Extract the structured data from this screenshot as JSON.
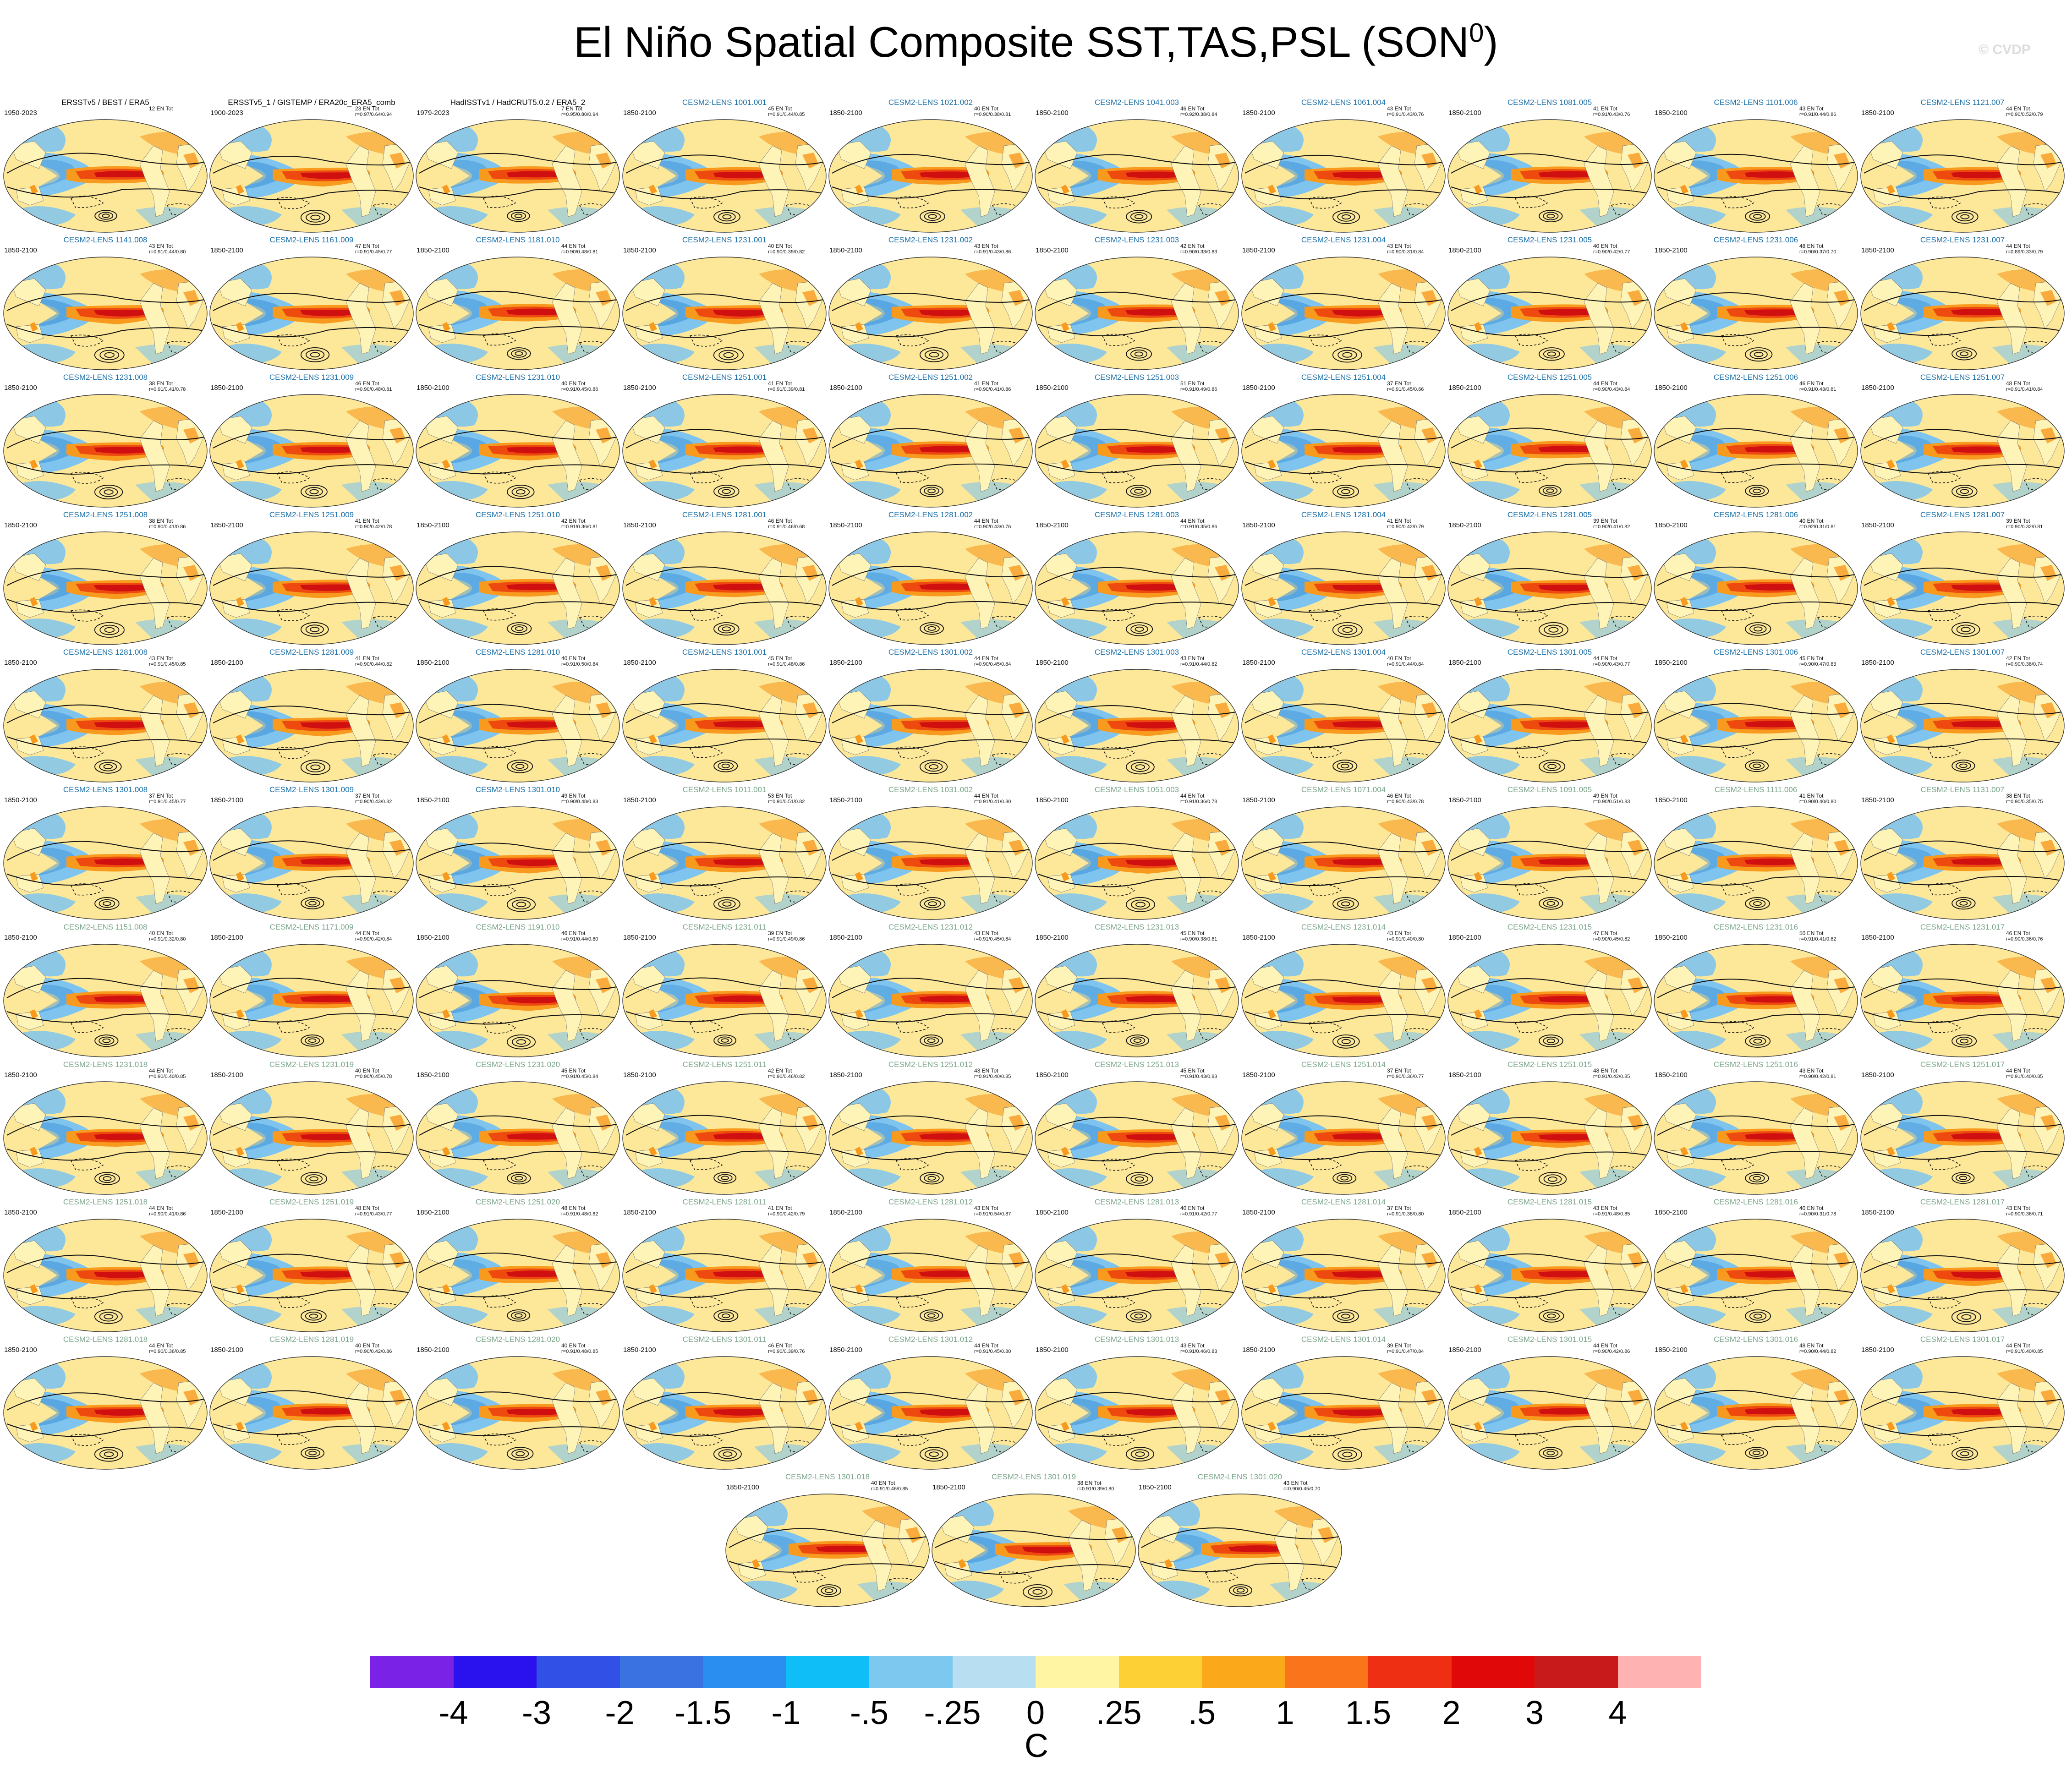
{
  "title": "El Niño Spatial Composite SST,TAS,PSL (SON",
  "title_superscript": "0",
  "title_close": ")",
  "watermark": "© CVDP",
  "colors": {
    "ocean_base": "#fde89a",
    "land_base": "#fff4b8",
    "ninotongue_outer": "#f79a1e",
    "ninotongue_mid": "#ee4a10",
    "ninotongue_core": "#d01010",
    "cold_boomerang": "#7fc4ee",
    "cold_boomerang_dark": "#3a8fd8",
    "contour": "#111111",
    "panel_title_obs": "#000000",
    "panel_title_cesm_first": "#1a6fa8",
    "panel_title_cesm_second": "#7ba58a"
  },
  "legend": {
    "colors": [
      "#7a22e6",
      "#2a12ee",
      "#3050e6",
      "#3b72e2",
      "#2a8ef0",
      "#0fbef6",
      "#7cc8ee",
      "#b7def1",
      "#fff5a2",
      "#fdd135",
      "#fba91b",
      "#f9741a",
      "#ee2f14",
      "#e00808",
      "#c81a1a",
      "#feb2b2"
    ],
    "ticks": [
      "-4",
      "-3",
      "-2",
      "-1.5",
      "-1",
      "-.5",
      "-.25",
      "0",
      ".25",
      ".5",
      "1",
      "1.5",
      "2",
      "3",
      "4"
    ],
    "unit": "C"
  },
  "panels": [
    {
      "name": "ERSSTv5 / BEST / ERA5",
      "period": "1950-2023",
      "count": "12 EN Tot",
      "stats": "",
      "title_color": "obs"
    },
    {
      "name": "ERSSTv5_1 / GISTEMP / ERA20c_ERA5_comb",
      "period": "1900-2023",
      "count": "23 EN Tot",
      "stats": "r=0.97/0.64/0.94",
      "title_color": "obs"
    },
    {
      "name": "HadISSTv1 / HadCRUT5.0.2 / ERA5_2",
      "period": "1979-2023",
      "count": "7 EN Tot",
      "stats": "r=0.95/0.80/0.94",
      "title_color": "obs"
    },
    {
      "name": "CESM2-LENS 1001.001",
      "period": "1850-2100",
      "count": "45 EN Tot",
      "stats": "r=0.91/0.44/0.85",
      "title_color": "c1"
    },
    {
      "name": "CESM2-LENS 1021.002",
      "period": "1850-2100",
      "count": "40 EN Tot",
      "stats": "r=0.90/0.38/0.81",
      "title_color": "c1"
    },
    {
      "name": "CESM2-LENS 1041.003",
      "period": "1850-2100",
      "count": "46 EN Tot",
      "stats": "r=0.92/0.38/0.84",
      "title_color": "c1"
    },
    {
      "name": "CESM2-LENS 1061.004",
      "period": "1850-2100",
      "count": "43 EN Tot",
      "stats": "r=0.91/0.43/0.76",
      "title_color": "c1"
    },
    {
      "name": "CESM2-LENS 1081.005",
      "period": "1850-2100",
      "count": "41 EN Tot",
      "stats": "r=0.91/0.43/0.76",
      "title_color": "c1"
    },
    {
      "name": "CESM2-LENS 1101.006",
      "period": "1850-2100",
      "count": "43 EN Tot",
      "stats": "r=0.91/0.44/0.86",
      "title_color": "c1"
    },
    {
      "name": "CESM2-LENS 1121.007",
      "period": "1850-2100",
      "count": "44 EN Tot",
      "stats": "r=0.90/0.52/0.79",
      "title_color": "c1"
    },
    {
      "name": "CESM2-LENS 1141.008",
      "period": "1850-2100",
      "count": "43 EN Tot",
      "stats": "r=0.91/0.44/0.80",
      "title_color": "c1"
    },
    {
      "name": "CESM2-LENS 1161.009",
      "period": "1850-2100",
      "count": "47 EN Tot",
      "stats": "r=0.91/0.45/0.77",
      "title_color": "c1"
    },
    {
      "name": "CESM2-LENS 1181.010",
      "period": "1850-2100",
      "count": "44 EN Tot",
      "stats": "r=0.90/0.48/0.81",
      "title_color": "c1"
    },
    {
      "name": "CESM2-LENS 1231.001",
      "period": "1850-2100",
      "count": "40 EN Tot",
      "stats": "r=0.90/0.39/0.82",
      "title_color": "c1"
    },
    {
      "name": "CESM2-LENS 1231.002",
      "period": "1850-2100",
      "count": "43 EN Tot",
      "stats": "r=0.91/0.43/0.86",
      "title_color": "c1"
    },
    {
      "name": "CESM2-LENS 1231.003",
      "period": "1850-2100",
      "count": "42 EN Tot",
      "stats": "r=0.90/0.33/0.83",
      "title_color": "c1"
    },
    {
      "name": "CESM2-LENS 1231.004",
      "period": "1850-2100",
      "count": "43 EN Tot",
      "stats": "r=0.90/0.31/0.84",
      "title_color": "c1"
    },
    {
      "name": "CESM2-LENS 1231.005",
      "period": "1850-2100",
      "count": "40 EN Tot",
      "stats": "r=0.90/0.42/0.77",
      "title_color": "c1"
    },
    {
      "name": "CESM2-LENS 1231.006",
      "period": "1850-2100",
      "count": "48 EN Tot",
      "stats": "r=0.90/0.37/0.70",
      "title_color": "c1"
    },
    {
      "name": "CESM2-LENS 1231.007",
      "period": "1850-2100",
      "count": "44 EN Tot",
      "stats": "r=0.89/0.33/0.79",
      "title_color": "c1"
    },
    {
      "name": "CESM2-LENS 1231.008",
      "period": "1850-2100",
      "count": "38 EN Tot",
      "stats": "r=0.91/0.41/0.78",
      "title_color": "c1"
    },
    {
      "name": "CESM2-LENS 1231.009",
      "period": "1850-2100",
      "count": "46 EN Tot",
      "stats": "r=0.90/0.48/0.81",
      "title_color": "c1"
    },
    {
      "name": "CESM2-LENS 1231.010",
      "period": "1850-2100",
      "count": "40 EN Tot",
      "stats": "r=0.91/0.45/0.86",
      "title_color": "c1"
    },
    {
      "name": "CESM2-LENS 1251.001",
      "period": "1850-2100",
      "count": "41 EN Tot",
      "stats": "r=0.91/0.39/0.81",
      "title_color": "c1"
    },
    {
      "name": "CESM2-LENS 1251.002",
      "period": "1850-2100",
      "count": "41 EN Tot",
      "stats": "r=0.90/0.41/0.86",
      "title_color": "c1"
    },
    {
      "name": "CESM2-LENS 1251.003",
      "period": "1850-2100",
      "count": "51 EN Tot",
      "stats": "r=0.91/0.49/0.86",
      "title_color": "c1"
    },
    {
      "name": "CESM2-LENS 1251.004",
      "period": "1850-2100",
      "count": "37 EN Tot",
      "stats": "r=0.91/0.45/0.66",
      "title_color": "c1"
    },
    {
      "name": "CESM2-LENS 1251.005",
      "period": "1850-2100",
      "count": "44 EN Tot",
      "stats": "r=0.90/0.43/0.84",
      "title_color": "c1"
    },
    {
      "name": "CESM2-LENS 1251.006",
      "period": "1850-2100",
      "count": "46 EN Tot",
      "stats": "r=0.91/0.43/0.81",
      "title_color": "c1"
    },
    {
      "name": "CESM2-LENS 1251.007",
      "period": "1850-2100",
      "count": "48 EN Tot",
      "stats": "r=0.91/0.41/0.84",
      "title_color": "c1"
    },
    {
      "name": "CESM2-LENS 1251.008",
      "period": "1850-2100",
      "count": "38 EN Tot",
      "stats": "r=0.90/0.41/0.86",
      "title_color": "c1"
    },
    {
      "name": "CESM2-LENS 1251.009",
      "period": "1850-2100",
      "count": "41 EN Tot",
      "stats": "r=0.90/0.42/0.78",
      "title_color": "c1"
    },
    {
      "name": "CESM2-LENS 1251.010",
      "period": "1850-2100",
      "count": "42 EN Tot",
      "stats": "r=0.91/0.36/0.81",
      "title_color": "c1"
    },
    {
      "name": "CESM2-LENS 1281.001",
      "period": "1850-2100",
      "count": "46 EN Tot",
      "stats": "r=0.91/0.46/0.68",
      "title_color": "c1"
    },
    {
      "name": "CESM2-LENS 1281.002",
      "period": "1850-2100",
      "count": "44 EN Tot",
      "stats": "r=0.90/0.43/0.76",
      "title_color": "c1"
    },
    {
      "name": "CESM2-LENS 1281.003",
      "period": "1850-2100",
      "count": "44 EN Tot",
      "stats": "r=0.91/0.35/0.86",
      "title_color": "c1"
    },
    {
      "name": "CESM2-LENS 1281.004",
      "period": "1850-2100",
      "count": "41 EN Tot",
      "stats": "r=0.90/0.42/0.79",
      "title_color": "c1"
    },
    {
      "name": "CESM2-LENS 1281.005",
      "period": "1850-2100",
      "count": "39 EN Tot",
      "stats": "r=0.90/0.41/0.82",
      "title_color": "c1"
    },
    {
      "name": "CESM2-LENS 1281.006",
      "period": "1850-2100",
      "count": "40 EN Tot",
      "stats": "r=0.92/0.31/0.81",
      "title_color": "c1"
    },
    {
      "name": "CESM2-LENS 1281.007",
      "period": "1850-2100",
      "count": "39 EN Tot",
      "stats": "r=0.90/0.32/0.81",
      "title_color": "c1"
    },
    {
      "name": "CESM2-LENS 1281.008",
      "period": "1850-2100",
      "count": "43 EN Tot",
      "stats": "r=0.91/0.45/0.85",
      "title_color": "c1"
    },
    {
      "name": "CESM2-LENS 1281.009",
      "period": "1850-2100",
      "count": "41 EN Tot",
      "stats": "r=0.90/0.44/0.82",
      "title_color": "c1"
    },
    {
      "name": "CESM2-LENS 1281.010",
      "period": "1850-2100",
      "count": "40 EN Tot",
      "stats": "r=0.91/0.50/0.84",
      "title_color": "c1"
    },
    {
      "name": "CESM2-LENS 1301.001",
      "period": "1850-2100",
      "count": "45 EN Tot",
      "stats": "r=0.91/0.48/0.86",
      "title_color": "c1"
    },
    {
      "name": "CESM2-LENS 1301.002",
      "period": "1850-2100",
      "count": "44 EN Tot",
      "stats": "r=0.90/0.45/0.84",
      "title_color": "c1"
    },
    {
      "name": "CESM2-LENS 1301.003",
      "period": "1850-2100",
      "count": "43 EN Tot",
      "stats": "r=0.91/0.44/0.82",
      "title_color": "c1"
    },
    {
      "name": "CESM2-LENS 1301.004",
      "period": "1850-2100",
      "count": "40 EN Tot",
      "stats": "r=0.91/0.44/0.84",
      "title_color": "c1"
    },
    {
      "name": "CESM2-LENS 1301.005",
      "period": "1850-2100",
      "count": "44 EN Tot",
      "stats": "r=0.90/0.43/0.77",
      "title_color": "c1"
    },
    {
      "name": "CESM2-LENS 1301.006",
      "period": "1850-2100",
      "count": "45 EN Tot",
      "stats": "r=0.90/0.47/0.83",
      "title_color": "c1"
    },
    {
      "name": "CESM2-LENS 1301.007",
      "period": "1850-2100",
      "count": "42 EN Tot",
      "stats": "r=0.90/0.38/0.74",
      "title_color": "c1"
    },
    {
      "name": "CESM2-LENS 1301.008",
      "period": "1850-2100",
      "count": "37 EN Tot",
      "stats": "r=0.91/0.45/0.77",
      "title_color": "c1"
    },
    {
      "name": "CESM2-LENS 1301.009",
      "period": "1850-2100",
      "count": "37 EN Tot",
      "stats": "r=0.90/0.43/0.82",
      "title_color": "c1"
    },
    {
      "name": "CESM2-LENS 1301.010",
      "period": "1850-2100",
      "count": "49 EN Tot",
      "stats": "r=0.90/0.48/0.83",
      "title_color": "c1"
    },
    {
      "name": "CESM2-LENS 1011.001",
      "period": "1850-2100",
      "count": "53 EN Tot",
      "stats": "r=0.90/0.51/0.82",
      "title_color": "c2"
    },
    {
      "name": "CESM2-LENS 1031.002",
      "period": "1850-2100",
      "count": "44 EN Tot",
      "stats": "r=0.91/0.41/0.80",
      "title_color": "c2"
    },
    {
      "name": "CESM2-LENS 1051.003",
      "period": "1850-2100",
      "count": "44 EN Tot",
      "stats": "r=0.91/0.36/0.78",
      "title_color": "c2"
    },
    {
      "name": "CESM2-LENS 1071.004",
      "period": "1850-2100",
      "count": "46 EN Tot",
      "stats": "r=0.90/0.43/0.78",
      "title_color": "c2"
    },
    {
      "name": "CESM2-LENS 1091.005",
      "period": "1850-2100",
      "count": "49 EN Tot",
      "stats": "r=0.90/0.51/0.83",
      "title_color": "c2"
    },
    {
      "name": "CESM2-LENS 1111.006",
      "period": "1850-2100",
      "count": "41 EN Tot",
      "stats": "r=0.90/0.40/0.80",
      "title_color": "c2"
    },
    {
      "name": "CESM2-LENS 1131.007",
      "period": "1850-2100",
      "count": "38 EN Tot",
      "stats": "r=0.90/0.35/0.75",
      "title_color": "c2"
    },
    {
      "name": "CESM2-LENS 1151.008",
      "period": "1850-2100",
      "count": "40 EN Tot",
      "stats": "r=0.91/0.32/0.80",
      "title_color": "c2"
    },
    {
      "name": "CESM2-LENS 1171.009",
      "period": "1850-2100",
      "count": "44 EN Tot",
      "stats": "r=0.90/0.42/0.84",
      "title_color": "c2"
    },
    {
      "name": "CESM2-LENS 1191.010",
      "period": "1850-2100",
      "count": "46 EN Tot",
      "stats": "r=0.91/0.44/0.80",
      "title_color": "c2"
    },
    {
      "name": "CESM2-LENS 1231.011",
      "period": "1850-2100",
      "count": "39 EN Tot",
      "stats": "r=0.91/0.49/0.86",
      "title_color": "c2"
    },
    {
      "name": "CESM2-LENS 1231.012",
      "period": "1850-2100",
      "count": "43 EN Tot",
      "stats": "r=0.91/0.45/0.84",
      "title_color": "c2"
    },
    {
      "name": "CESM2-LENS 1231.013",
      "period": "1850-2100",
      "count": "45 EN Tot",
      "stats": "r=0.90/0.38/0.81",
      "title_color": "c2"
    },
    {
      "name": "CESM2-LENS 1231.014",
      "period": "1850-2100",
      "count": "43 EN Tot",
      "stats": "r=0.91/0.40/0.80",
      "title_color": "c2"
    },
    {
      "name": "CESM2-LENS 1231.015",
      "period": "1850-2100",
      "count": "47 EN Tot",
      "stats": "r=0.90/0.45/0.82",
      "title_color": "c2"
    },
    {
      "name": "CESM2-LENS 1231.016",
      "period": "1850-2100",
      "count": "50 EN Tot",
      "stats": "r=0.91/0.41/0.82",
      "title_color": "c2"
    },
    {
      "name": "CESM2-LENS 1231.017",
      "period": "1850-2100",
      "count": "46 EN Tot",
      "stats": "r=0.90/0.36/0.76",
      "title_color": "c2"
    },
    {
      "name": "CESM2-LENS 1231.018",
      "period": "1850-2100",
      "count": "44 EN Tot",
      "stats": "r=0.90/0.40/0.85",
      "title_color": "c2"
    },
    {
      "name": "CESM2-LENS 1231.019",
      "period": "1850-2100",
      "count": "40 EN Tot",
      "stats": "r=0.90/0.45/0.78",
      "title_color": "c2"
    },
    {
      "name": "CESM2-LENS 1231.020",
      "period": "1850-2100",
      "count": "45 EN Tot",
      "stats": "r=0.91/0.45/0.84",
      "title_color": "c2"
    },
    {
      "name": "CESM2-LENS 1251.011",
      "period": "1850-2100",
      "count": "42 EN Tot",
      "stats": "r=0.90/0.46/0.82",
      "title_color": "c2"
    },
    {
      "name": "CESM2-LENS 1251.012",
      "period": "1850-2100",
      "count": "43 EN Tot",
      "stats": "r=0.91/0.40/0.85",
      "title_color": "c2"
    },
    {
      "name": "CESM2-LENS 1251.013",
      "period": "1850-2100",
      "count": "45 EN Tot",
      "stats": "r=0.91/0.43/0.83",
      "title_color": "c2"
    },
    {
      "name": "CESM2-LENS 1251.014",
      "period": "1850-2100",
      "count": "37 EN Tot",
      "stats": "r=0.90/0.36/0.77",
      "title_color": "c2"
    },
    {
      "name": "CESM2-LENS 1251.015",
      "period": "1850-2100",
      "count": "48 EN Tot",
      "stats": "r=0.91/0.42/0.85",
      "title_color": "c2"
    },
    {
      "name": "CESM2-LENS 1251.016",
      "period": "1850-2100",
      "count": "43 EN Tot",
      "stats": "r=0.90/0.42/0.81",
      "title_color": "c2"
    },
    {
      "name": "CESM2-LENS 1251.017",
      "period": "1850-2100",
      "count": "44 EN Tot",
      "stats": "r=0.91/0.40/0.85",
      "title_color": "c2"
    },
    {
      "name": "CESM2-LENS 1251.018",
      "period": "1850-2100",
      "count": "44 EN Tot",
      "stats": "r=0.90/0.41/0.86",
      "title_color": "c2"
    },
    {
      "name": "CESM2-LENS 1251.019",
      "period": "1850-2100",
      "count": "48 EN Tot",
      "stats": "r=0.91/0.43/0.77",
      "title_color": "c2"
    },
    {
      "name": "CESM2-LENS 1251.020",
      "period": "1850-2100",
      "count": "48 EN Tot",
      "stats": "r=0.91/0.48/0.82",
      "title_color": "c2"
    },
    {
      "name": "CESM2-LENS 1281.011",
      "period": "1850-2100",
      "count": "41 EN Tot",
      "stats": "r=0.90/0.42/0.79",
      "title_color": "c2"
    },
    {
      "name": "CESM2-LENS 1281.012",
      "period": "1850-2100",
      "count": "43 EN Tot",
      "stats": "r=0.91/0.54/0.87",
      "title_color": "c2"
    },
    {
      "name": "CESM2-LENS 1281.013",
      "period": "1850-2100",
      "count": "40 EN Tot",
      "stats": "r=0.91/0.42/0.77",
      "title_color": "c2"
    },
    {
      "name": "CESM2-LENS 1281.014",
      "period": "1850-2100",
      "count": "37 EN Tot",
      "stats": "r=0.91/0.38/0.80",
      "title_color": "c2"
    },
    {
      "name": "CESM2-LENS 1281.015",
      "period": "1850-2100",
      "count": "43 EN Tot",
      "stats": "r=0.91/0.48/0.85",
      "title_color": "c2"
    },
    {
      "name": "CESM2-LENS 1281.016",
      "period": "1850-2100",
      "count": "40 EN Tot",
      "stats": "r=0.90/0.31/0.78",
      "title_color": "c2"
    },
    {
      "name": "CESM2-LENS 1281.017",
      "period": "1850-2100",
      "count": "43 EN Tot",
      "stats": "r=0.90/0.36/0.71",
      "title_color": "c2"
    },
    {
      "name": "CESM2-LENS 1281.018",
      "period": "1850-2100",
      "count": "44 EN Tot",
      "stats": "r=0.90/0.36/0.85",
      "title_color": "c2"
    },
    {
      "name": "CESM2-LENS 1281.019",
      "period": "1850-2100",
      "count": "40 EN Tot",
      "stats": "r=0.90/0.42/0.86",
      "title_color": "c2"
    },
    {
      "name": "CESM2-LENS 1281.020",
      "period": "1850-2100",
      "count": "40 EN Tot",
      "stats": "r=0.91/0.48/0.85",
      "title_color": "c2"
    },
    {
      "name": "CESM2-LENS 1301.011",
      "period": "1850-2100",
      "count": "46 EN Tot",
      "stats": "r=0.90/0.39/0.76",
      "title_color": "c2"
    },
    {
      "name": "CESM2-LENS 1301.012",
      "period": "1850-2100",
      "count": "44 EN Tot",
      "stats": "r=0.91/0.45/0.80",
      "title_color": "c2"
    },
    {
      "name": "CESM2-LENS 1301.013",
      "period": "1850-2100",
      "count": "43 EN Tot",
      "stats": "r=0.91/0.46/0.83",
      "title_color": "c2"
    },
    {
      "name": "CESM2-LENS 1301.014",
      "period": "1850-2100",
      "count": "39 EN Tot",
      "stats": "r=0.91/0.47/0.84",
      "title_color": "c2"
    },
    {
      "name": "CESM2-LENS 1301.015",
      "period": "1850-2100",
      "count": "44 EN Tot",
      "stats": "r=0.90/0.42/0.86",
      "title_color": "c2"
    },
    {
      "name": "CESM2-LENS 1301.016",
      "period": "1850-2100",
      "count": "48 EN Tot",
      "stats": "r=0.90/0.44/0.82",
      "title_color": "c2"
    },
    {
      "name": "CESM2-LENS 1301.017",
      "period": "1850-2100",
      "count": "44 EN Tot",
      "stats": "r=0.91/0.40/0.85",
      "title_color": "c2"
    },
    {
      "name": "CESM2-LENS 1301.018",
      "period": "1850-2100",
      "count": "40 EN Tot",
      "stats": "r=0.91/0.46/0.85",
      "title_color": "c2"
    },
    {
      "name": "CESM2-LENS 1301.019",
      "period": "1850-2100",
      "count": "38 EN Tot",
      "stats": "r=0.91/0.39/0.80",
      "title_color": "c2"
    },
    {
      "name": "CESM2-LENS 1301.020",
      "period": "1850-2100",
      "count": "43 EN Tot",
      "stats": "r=0.90/0.45/0.70",
      "title_color": "c2"
    }
  ]
}
